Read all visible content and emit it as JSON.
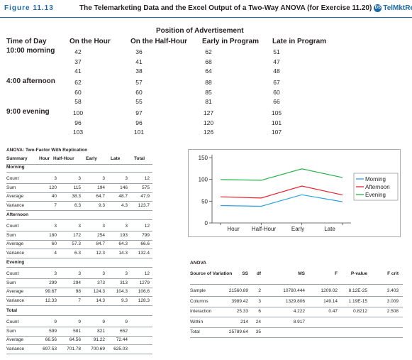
{
  "figure": {
    "label": "Figure 11.13",
    "title": "The Telemarketing Data and the Excel Output of a Two-Way ANOVA (for Exercise 11.20)",
    "ds_badge": "DS",
    "dataset": "TelMktResp"
  },
  "data_table": {
    "super_header": "Position of Advertisement",
    "row_header_line1": "Time of Day",
    "columns": [
      "On the Hour",
      "On the Half-Hour",
      "Early in Program",
      "Late in Program"
    ],
    "groups": [
      {
        "label": "10:00 morning",
        "rows": [
          [
            "42",
            "36",
            "62",
            "51"
          ],
          [
            "37",
            "41",
            "68",
            "47"
          ],
          [
            "41",
            "38",
            "64",
            "48"
          ]
        ]
      },
      {
        "label": "4:00 afternoon",
        "rows": [
          [
            "62",
            "57",
            "88",
            "67"
          ],
          [
            "60",
            "60",
            "85",
            "60"
          ],
          [
            "58",
            "55",
            "81",
            "66"
          ]
        ]
      },
      {
        "label": "9:00 evening",
        "rows": [
          [
            "100",
            "97",
            "127",
            "105"
          ],
          [
            "96",
            "96",
            "120",
            "101"
          ],
          [
            "103",
            "101",
            "126",
            "107"
          ]
        ]
      }
    ]
  },
  "summary": {
    "title": "ANOVA: Two-Factor With Replication",
    "headers": [
      "Summary",
      "Hour",
      "Half-Hour",
      "Early",
      "Late",
      "Total"
    ],
    "sections": [
      {
        "name": "Morning",
        "rows": [
          {
            "label": "Count",
            "values": [
              "3",
              "3",
              "3",
              "3",
              "12"
            ]
          },
          {
            "label": "Sum",
            "values": [
              "120",
              "115",
              "194",
              "146",
              "575"
            ]
          },
          {
            "label": "Average",
            "values": [
              "40",
              "38.3",
              "64.7",
              "48.7",
              "47.9"
            ]
          },
          {
            "label": "Variance",
            "values": [
              "7",
              "6.3",
              "9.3",
              "4.3",
              "123.7"
            ]
          }
        ]
      },
      {
        "name": "Afternoon",
        "rows": [
          {
            "label": "Count",
            "values": [
              "3",
              "3",
              "3",
              "3",
              "12"
            ]
          },
          {
            "label": "Sum",
            "values": [
              "180",
              "172",
              "254",
              "193",
              "799"
            ]
          },
          {
            "label": "Average",
            "values": [
              "60",
              "57.3",
              "84.7",
              "64.3",
              "66.6"
            ]
          },
          {
            "label": "Variance",
            "values": [
              "4",
              "6.3",
              "12.3",
              "14.3",
              "132.4"
            ]
          }
        ]
      },
      {
        "name": "Evening",
        "rows": [
          {
            "label": "Count",
            "values": [
              "3",
              "3",
              "3",
              "3",
              "12"
            ]
          },
          {
            "label": "Sum",
            "values": [
              "299",
              "294",
              "373",
              "313",
              "1279"
            ]
          },
          {
            "label": "Average",
            "values": [
              "99.67",
              "98",
              "124.3",
              "104.3",
              "106.6"
            ]
          },
          {
            "label": "Variance",
            "values": [
              "12.33",
              "7",
              "14.3",
              "9.3",
              "128.3"
            ]
          }
        ]
      },
      {
        "name": "Total",
        "rows": [
          {
            "label": "Count",
            "values": [
              "9",
              "9",
              "9",
              "9",
              ""
            ]
          },
          {
            "label": "Sum",
            "values": [
              "599",
              "581",
              "821",
              "652",
              ""
            ]
          },
          {
            "label": "Average",
            "values": [
              "66.56",
              "64.56",
              "91.22",
              "72.44",
              ""
            ]
          },
          {
            "label": "Variance",
            "values": [
              "697.53",
              "701.78",
              "700.69",
              "625.03",
              ""
            ]
          }
        ]
      }
    ]
  },
  "anova": {
    "title": "ANOVA",
    "headers": [
      "Source of Variation",
      "SS",
      "df",
      "MS",
      "F",
      "P-value",
      "F crit"
    ],
    "rows": [
      [
        "Sample",
        "21560.89",
        "2",
        "10780.444",
        "1209.02",
        "8.12E-25",
        "3.403"
      ],
      [
        "Columns",
        "3989.42",
        "3",
        "1329.806",
        "149.14",
        "1.19E-15",
        "3.009"
      ],
      [
        "Interaction",
        "25.33",
        "6",
        "4.222",
        "0.47",
        "0.8212",
        "2.508"
      ],
      [
        "Within",
        "214",
        "24",
        "8.917",
        "",
        "",
        ""
      ],
      [
        "Total",
        "25789.64",
        "35",
        "",
        "",
        "",
        ""
      ]
    ]
  },
  "chart_data": {
    "type": "line",
    "categories": [
      "Hour",
      "Half-Hour",
      "Early",
      "Late"
    ],
    "series": [
      {
        "name": "Morning",
        "values": [
          40,
          38.3,
          64.7,
          48.7
        ],
        "color": "#2aa3e3"
      },
      {
        "name": "Afternoon",
        "values": [
          60,
          57.3,
          84.7,
          64.3
        ],
        "color": "#e8212a"
      },
      {
        "name": "Evening",
        "values": [
          99.67,
          98,
          124.3,
          104.3
        ],
        "color": "#29b24a"
      }
    ],
    "yticks": [
      "0",
      "50",
      "100",
      "150"
    ],
    "ylim": [
      0,
      150
    ],
    "legend_position": "right",
    "grid": false
  }
}
